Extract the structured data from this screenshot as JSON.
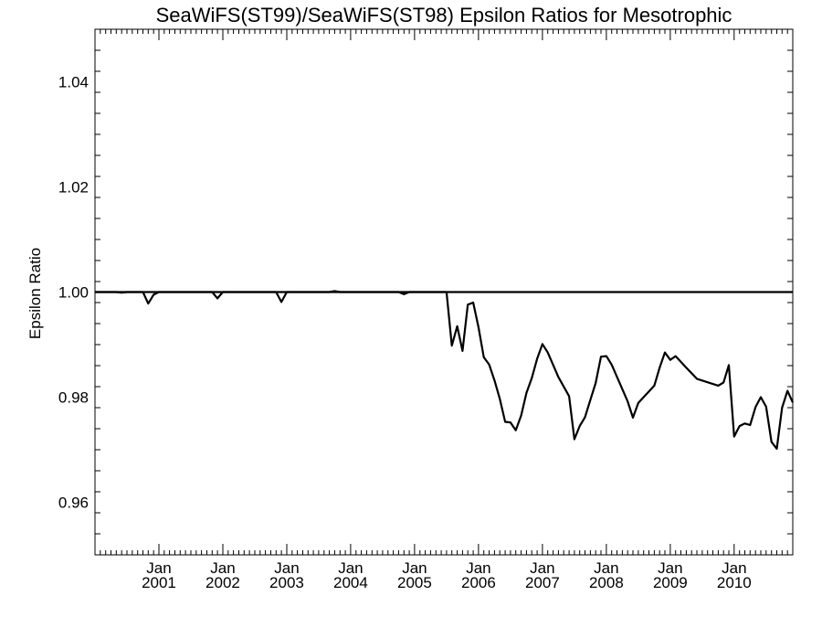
{
  "chart_data": {
    "type": "line",
    "title": "SeaWiFS(ST99)/SeaWiFS(ST98)  Epsilon Ratios for Mesotrophic",
    "xlabel": "",
    "ylabel": "Epsilon Ratio",
    "xlim": [
      "2000-01-01",
      "2010-12-01"
    ],
    "ylim": [
      0.95,
      1.05
    ],
    "yticks": [
      0.96,
      0.98,
      1.0,
      1.02,
      1.04
    ],
    "ytick_labels": [
      "0.96",
      "0.98",
      "1.00",
      "1.02",
      "1.04"
    ],
    "xticks": [
      "2001-01",
      "2002-01",
      "2003-01",
      "2004-01",
      "2005-01",
      "2006-01",
      "2007-01",
      "2008-01",
      "2009-01",
      "2010-01"
    ],
    "xtick_labels": [
      [
        "Jan",
        "2001"
      ],
      [
        "Jan",
        "2002"
      ],
      [
        "Jan",
        "2003"
      ],
      [
        "Jan",
        "2004"
      ],
      [
        "Jan",
        "2005"
      ],
      [
        "Jan",
        "2006"
      ],
      [
        "Jan",
        "2007"
      ],
      [
        "Jan",
        "2008"
      ],
      [
        "Jan",
        "2009"
      ],
      [
        "Jan",
        "2010"
      ]
    ],
    "reference_line": 1.0,
    "grid": false,
    "series": [
      {
        "color": "#000000",
        "points": [
          [
            "2000-01",
            1.0
          ],
          [
            "2000-05",
            1.0
          ],
          [
            "2000-06",
            0.9999
          ],
          [
            "2000-07",
            1.0
          ],
          [
            "2000-10",
            1.0
          ],
          [
            "2000-11",
            0.9978
          ],
          [
            "2000-12",
            0.9995
          ],
          [
            "2001-01",
            1.0
          ],
          [
            "2001-11",
            1.0
          ],
          [
            "2001-12",
            0.9988
          ],
          [
            "2002-01",
            1.0
          ],
          [
            "2002-11",
            1.0
          ],
          [
            "2002-12",
            0.9981
          ],
          [
            "2003-01",
            1.0
          ],
          [
            "2003-09",
            1.0
          ],
          [
            "2003-10",
            1.0002
          ],
          [
            "2003-11",
            1.0
          ],
          [
            "2004-10",
            1.0
          ],
          [
            "2004-11",
            0.9996
          ],
          [
            "2004-12",
            1.0
          ],
          [
            "2005-07",
            1.0
          ],
          [
            "2005-08",
            0.9898
          ],
          [
            "2005-09",
            0.9935
          ],
          [
            "2005-10",
            0.9888
          ],
          [
            "2005-11",
            0.9976
          ],
          [
            "2005-12",
            0.998
          ],
          [
            "2006-01",
            0.9933
          ],
          [
            "2006-02",
            0.9876
          ],
          [
            "2006-03",
            0.9862
          ],
          [
            "2006-04",
            0.9832
          ],
          [
            "2006-05",
            0.9797
          ],
          [
            "2006-06",
            0.9753
          ],
          [
            "2006-07",
            0.9752
          ],
          [
            "2006-08",
            0.9737
          ],
          [
            "2006-09",
            0.9765
          ],
          [
            "2006-10",
            0.9808
          ],
          [
            "2006-11",
            0.9836
          ],
          [
            "2006-12",
            0.9873
          ],
          [
            "2007-01",
            0.9901
          ],
          [
            "2007-02",
            0.9885
          ],
          [
            "2007-04",
            0.9838
          ],
          [
            "2007-06",
            0.9802
          ],
          [
            "2007-07",
            0.972
          ],
          [
            "2007-08",
            0.9745
          ],
          [
            "2007-09",
            0.9762
          ],
          [
            "2007-10",
            0.9795
          ],
          [
            "2007-11",
            0.9827
          ],
          [
            "2007-12",
            0.9877
          ],
          [
            "2008-01",
            0.9878
          ],
          [
            "2008-02",
            0.9862
          ],
          [
            "2008-05",
            0.9792
          ],
          [
            "2008-06",
            0.9761
          ],
          [
            "2008-07",
            0.9789
          ],
          [
            "2008-10",
            0.9822
          ],
          [
            "2008-11",
            0.9856
          ],
          [
            "2008-12",
            0.9885
          ],
          [
            "2009-01",
            0.9871
          ],
          [
            "2009-02",
            0.9878
          ],
          [
            "2009-04",
            0.9856
          ],
          [
            "2009-06",
            0.9835
          ],
          [
            "2009-10",
            0.9822
          ],
          [
            "2009-11",
            0.9828
          ],
          [
            "2009-12",
            0.9861
          ],
          [
            "2010-01",
            0.9725
          ],
          [
            "2010-02",
            0.9745
          ],
          [
            "2010-03",
            0.975
          ],
          [
            "2010-04",
            0.9747
          ],
          [
            "2010-05",
            0.9781
          ],
          [
            "2010-06",
            0.98
          ],
          [
            "2010-07",
            0.9782
          ],
          [
            "2010-08",
            0.9715
          ],
          [
            "2010-09",
            0.9702
          ],
          [
            "2010-10",
            0.978
          ],
          [
            "2010-11",
            0.9812
          ],
          [
            "2010-12",
            0.979
          ]
        ]
      }
    ]
  }
}
